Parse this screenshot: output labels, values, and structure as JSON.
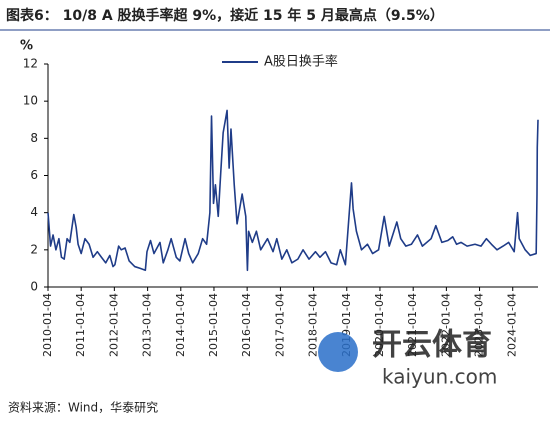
{
  "chart_data": {
    "type": "line",
    "title": "图表6：  10/8 A 股换手率超 9%，接近 15 年 5 月最高点（9.5%）",
    "y_label": "%",
    "source": "资料来源：Wind，华泰研究",
    "watermark": {
      "name": "开云体育",
      "url": "kaiyun.com"
    },
    "legend": "top",
    "x": [
      "2010-01-04",
      "2010-02-01",
      "2010-03-01",
      "2010-04-01",
      "2010-05-04",
      "2010-06-01",
      "2010-07-01",
      "2010-08-02",
      "2010-09-01",
      "2010-10-15",
      "2010-11-10",
      "2010-12-01",
      "2011-01-04",
      "2011-02-15",
      "2011-04-01",
      "2011-05-15",
      "2011-07-01",
      "2011-08-15",
      "2011-10-01",
      "2011-11-15",
      "2011-12-20",
      "2012-01-10",
      "2012-02-20",
      "2012-03-20",
      "2012-05-01",
      "2012-06-15",
      "2012-08-15",
      "2012-10-15",
      "2012-12-10",
      "2012-12-28",
      "2013-02-05",
      "2013-03-15",
      "2013-05-20",
      "2013-06-25",
      "2013-08-15",
      "2013-09-20",
      "2013-11-15",
      "2013-12-25",
      "2014-02-20",
      "2014-04-01",
      "2014-05-15",
      "2014-07-15",
      "2014-09-01",
      "2014-10-15",
      "2014-11-20",
      "2014-12-08",
      "2014-12-30",
      "2015-01-20",
      "2015-02-20",
      "2015-03-20",
      "2015-04-15",
      "2015-05-28",
      "2015-06-20",
      "2015-07-10",
      "2015-08-15",
      "2015-09-15",
      "2015-11-10",
      "2015-12-20",
      "2016-01-07",
      "2016-01-20",
      "2016-03-01",
      "2016-04-15",
      "2016-06-01",
      "2016-08-15",
      "2016-10-15",
      "2016-11-25",
      "2017-01-20",
      "2017-03-15",
      "2017-05-10",
      "2017-07-15",
      "2017-09-10",
      "2017-11-15",
      "2018-01-25",
      "2018-03-15",
      "2018-05-15",
      "2018-07-15",
      "2018-09-15",
      "2018-10-25",
      "2018-12-20",
      "2019-02-25",
      "2019-03-15",
      "2019-04-20",
      "2019-06-15",
      "2019-08-20",
      "2019-10-15",
      "2019-12-20",
      "2020-02-20",
      "2020-04-15",
      "2020-07-08",
      "2020-08-20",
      "2020-10-15",
      "2020-12-15",
      "2021-02-20",
      "2021-04-15",
      "2021-07-20",
      "2021-09-10",
      "2021-11-15",
      "2022-01-20",
      "2022-03-15",
      "2022-04-26",
      "2022-06-15",
      "2022-08-20",
      "2022-11-15",
      "2023-01-20",
      "2023-03-20",
      "2023-05-15",
      "2023-07-15",
      "2023-09-20",
      "2023-11-20",
      "2024-01-20",
      "2024-02-26",
      "2024-03-15",
      "2024-05-20",
      "2024-07-15",
      "2024-09-18",
      "2024-09-27",
      "2024-09-30",
      "2024-10-08"
    ],
    "series": [
      {
        "name": "A股日换手率",
        "color": "#1f3c88",
        "values": [
          4.0,
          2.2,
          2.8,
          2.0,
          2.6,
          1.6,
          1.5,
          2.6,
          2.4,
          3.9,
          3.2,
          2.3,
          1.8,
          2.6,
          2.3,
          1.6,
          1.9,
          1.6,
          1.3,
          1.7,
          1.1,
          1.2,
          2.2,
          2.0,
          2.1,
          1.4,
          1.1,
          1.0,
          0.9,
          1.9,
          2.5,
          1.8,
          2.4,
          1.3,
          2.0,
          2.6,
          1.6,
          1.4,
          2.6,
          1.8,
          1.3,
          1.8,
          2.6,
          2.3,
          4.0,
          9.2,
          4.5,
          5.5,
          3.8,
          6.2,
          8.3,
          9.5,
          6.4,
          8.5,
          5.5,
          3.4,
          5.0,
          3.8,
          0.9,
          3.0,
          2.4,
          3.0,
          2.0,
          2.6,
          1.9,
          2.6,
          1.5,
          2.0,
          1.3,
          1.5,
          2.0,
          1.5,
          1.9,
          1.6,
          1.9,
          1.3,
          1.2,
          2.0,
          1.2,
          5.6,
          4.2,
          3.0,
          2.0,
          2.3,
          1.8,
          2.0,
          3.8,
          2.2,
          3.5,
          2.6,
          2.2,
          2.3,
          2.8,
          2.2,
          2.6,
          3.3,
          2.4,
          2.5,
          2.7,
          2.3,
          2.4,
          2.2,
          2.3,
          2.2,
          2.6,
          2.3,
          2.0,
          2.2,
          2.4,
          1.9,
          4.0,
          2.6,
          2.0,
          1.7,
          1.8,
          5.0,
          7.5,
          9.0
        ]
      }
    ],
    "xlim": [
      "2010-01-04",
      "2024-10-08"
    ],
    "xticks": [
      "2010-01-04",
      "2011-01-04",
      "2012-01-04",
      "2013-01-04",
      "2014-01-04",
      "2015-01-04",
      "2016-01-04",
      "2017-01-04",
      "2018-01-04",
      "2019-01-04",
      "2020-01-04",
      "2021-01-04",
      "2022-01-04",
      "2023-01-04",
      "2024-01-04"
    ],
    "ylim": [
      0,
      12
    ],
    "yticks": [
      0,
      2,
      4,
      6,
      8,
      10,
      12
    ]
  }
}
